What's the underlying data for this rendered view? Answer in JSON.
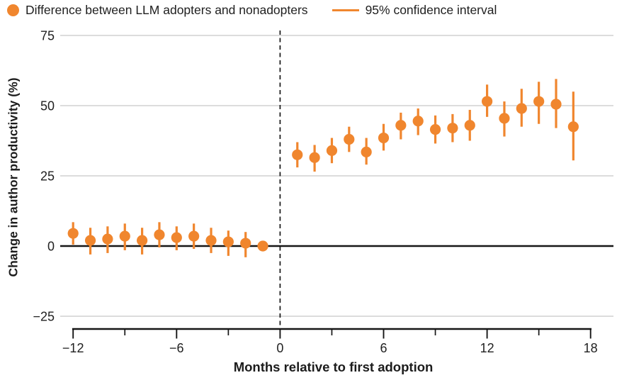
{
  "legend": {
    "marker_label": "Difference between LLM adopters and nonadopters",
    "ci_label": "95% confidence interval"
  },
  "colors": {
    "accent_orange": "#F0862E",
    "grid": "#C8C8C8",
    "axis": "#161616",
    "text": "#212121"
  },
  "chart_data": {
    "type": "scatter",
    "title": "",
    "xlabel": "Months relative to first adoption",
    "ylabel": "Change in author productivity (%)",
    "xlim": [
      -12.7,
      18.7
    ],
    "ylim": [
      -30,
      76
    ],
    "x_major_ticks": [
      -12,
      -6,
      0,
      6,
      12,
      18
    ],
    "x_minor_ticks": [
      -9,
      -3,
      3,
      9,
      15
    ],
    "y_ticks": [
      75,
      50,
      25,
      0,
      -25
    ],
    "grid": true,
    "zero_line_y": 0,
    "event_line_x": 0,
    "legend_position": "top-left",
    "series": [
      {
        "name": "Difference between LLM adopters and nonadopters",
        "error_bar_label": "95% confidence interval",
        "points": [
          {
            "x": -12,
            "y": 4.5,
            "lo": 0.5,
            "hi": 8.5
          },
          {
            "x": -11,
            "y": 2,
            "lo": -3,
            "hi": 6.5
          },
          {
            "x": -10,
            "y": 2.5,
            "lo": -2.5,
            "hi": 7
          },
          {
            "x": -9,
            "y": 3.5,
            "lo": -1.5,
            "hi": 8
          },
          {
            "x": -8,
            "y": 2,
            "lo": -3,
            "hi": 6.5
          },
          {
            "x": -7,
            "y": 4,
            "lo": -0.5,
            "hi": 8.5
          },
          {
            "x": -6,
            "y": 3,
            "lo": -1.5,
            "hi": 7
          },
          {
            "x": -5,
            "y": 3.5,
            "lo": -1,
            "hi": 8
          },
          {
            "x": -4,
            "y": 2,
            "lo": -2.5,
            "hi": 6.5
          },
          {
            "x": -3,
            "y": 1.5,
            "lo": -3.5,
            "hi": 5.5
          },
          {
            "x": -2,
            "y": 1,
            "lo": -4,
            "hi": 5
          },
          {
            "x": -1,
            "y": 0,
            "lo": 0,
            "hi": 0
          },
          {
            "x": 1,
            "y": 32.5,
            "lo": 28,
            "hi": 37
          },
          {
            "x": 2,
            "y": 31.5,
            "lo": 26.5,
            "hi": 36
          },
          {
            "x": 3,
            "y": 34,
            "lo": 29.5,
            "hi": 38.5
          },
          {
            "x": 4,
            "y": 38,
            "lo": 33.5,
            "hi": 42.5
          },
          {
            "x": 5,
            "y": 33.5,
            "lo": 29,
            "hi": 38.5
          },
          {
            "x": 6,
            "y": 38.5,
            "lo": 34,
            "hi": 43.5
          },
          {
            "x": 7,
            "y": 43,
            "lo": 38,
            "hi": 47.5
          },
          {
            "x": 8,
            "y": 44.5,
            "lo": 39.5,
            "hi": 49
          },
          {
            "x": 9,
            "y": 41.5,
            "lo": 36.5,
            "hi": 46.5
          },
          {
            "x": 10,
            "y": 42,
            "lo": 37,
            "hi": 47
          },
          {
            "x": 11,
            "y": 43,
            "lo": 37.5,
            "hi": 48.5
          },
          {
            "x": 12,
            "y": 51.5,
            "lo": 46,
            "hi": 57.5
          },
          {
            "x": 13,
            "y": 45.5,
            "lo": 39,
            "hi": 51.5
          },
          {
            "x": 14,
            "y": 49,
            "lo": 42.5,
            "hi": 56
          },
          {
            "x": 15,
            "y": 51.5,
            "lo": 43.5,
            "hi": 58.5
          },
          {
            "x": 16,
            "y": 50.5,
            "lo": 42,
            "hi": 59.5
          },
          {
            "x": 17,
            "y": 42.5,
            "lo": 30.5,
            "hi": 55
          }
        ]
      }
    ]
  }
}
